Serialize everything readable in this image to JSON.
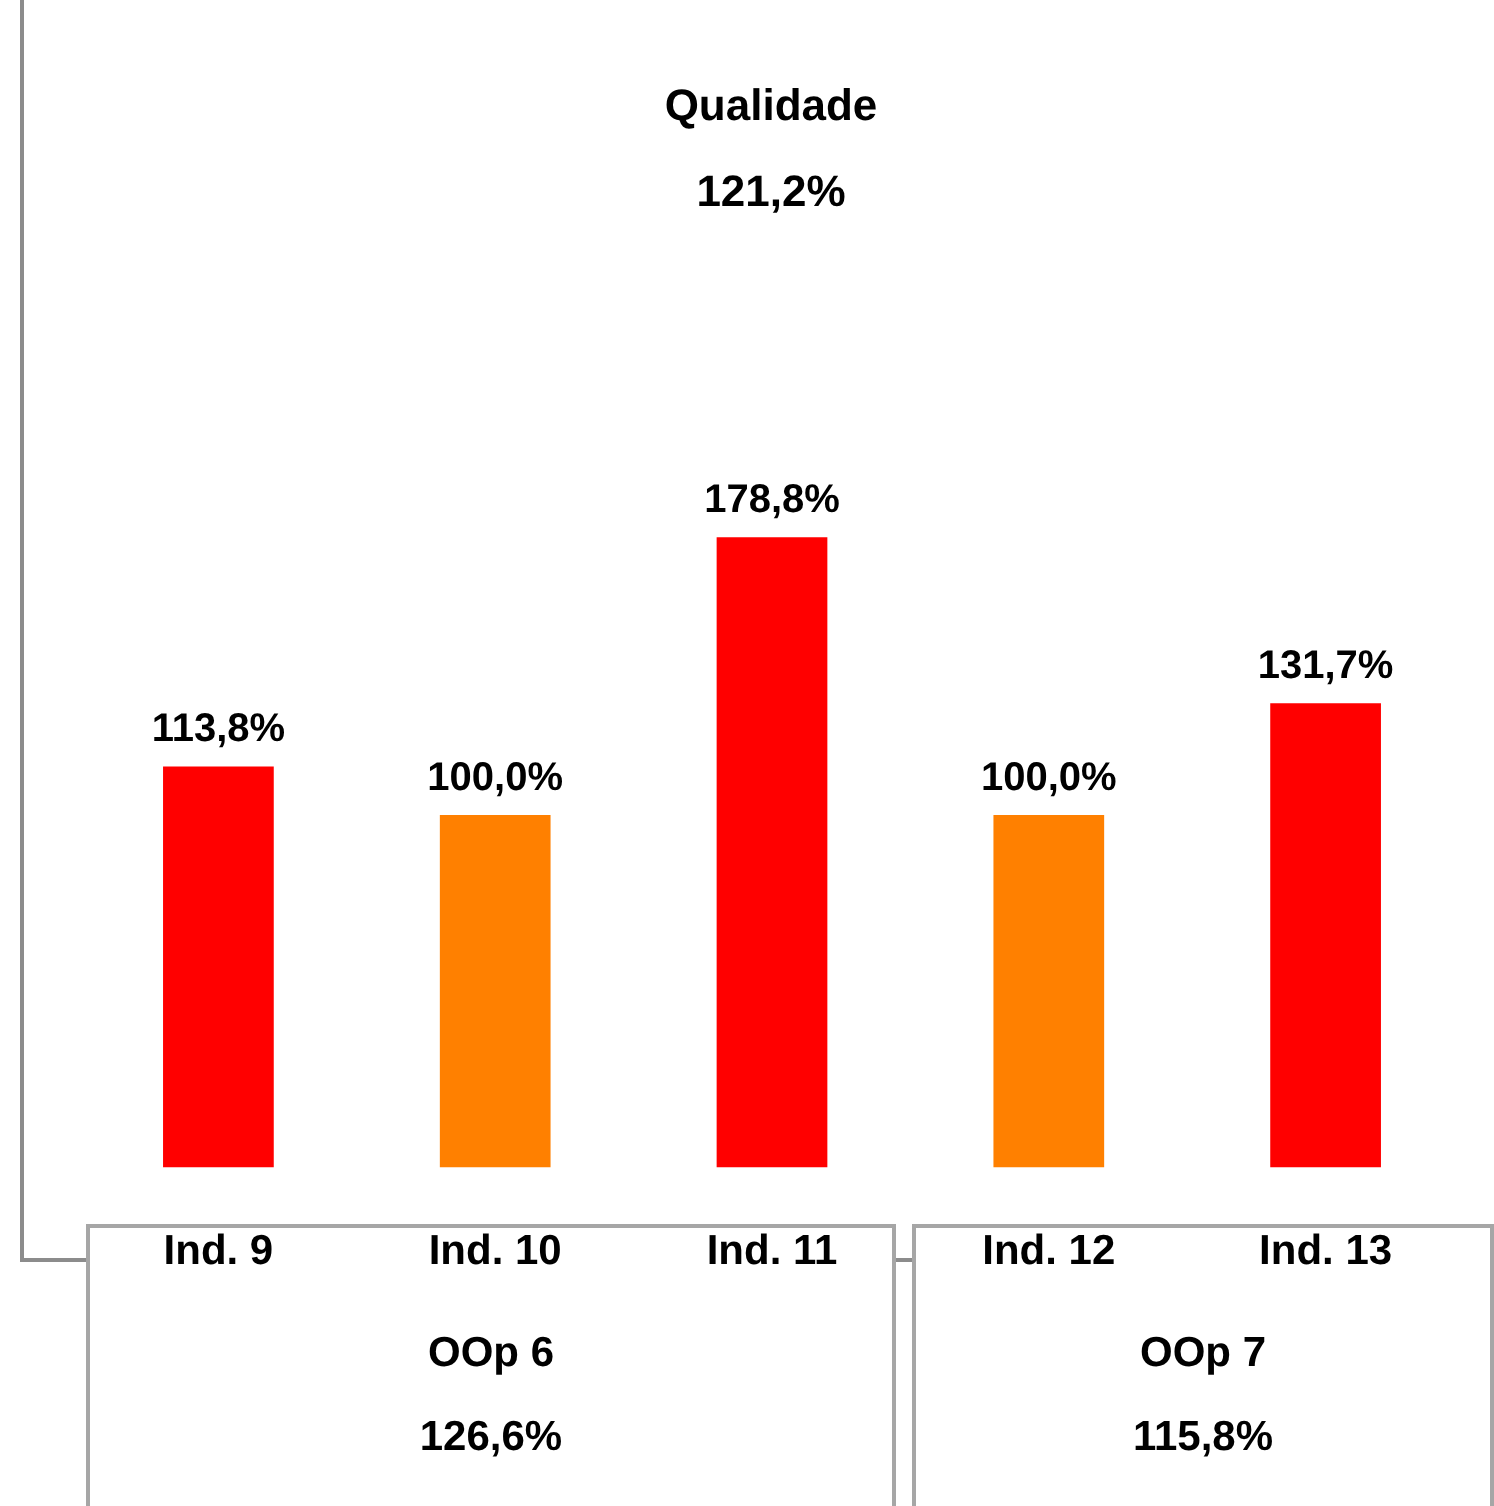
{
  "chart_data": {
    "type": "bar",
    "title": "Qualidade",
    "subtitle": "121,2%",
    "categories": [
      "Ind. 9",
      "Ind. 10",
      "Ind. 11",
      "Ind. 12",
      "Ind. 13"
    ],
    "values": [
      113.8,
      100.0,
      178.8,
      100.0,
      131.7
    ],
    "colors": [
      "#ff0000",
      "#ff8000",
      "#ff0000",
      "#ff8000",
      "#ff0000"
    ],
    "value_labels": [
      "113,8%",
      "100,0%",
      "178,8%",
      "100,0%",
      "131,7%"
    ],
    "annotations": [
      "OOp 6",
      "126,6%",
      "OOp 7",
      "115,8%"
    ]
  }
}
